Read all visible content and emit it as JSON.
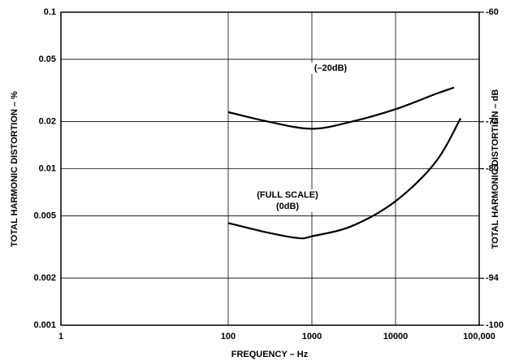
{
  "chart_data": {
    "type": "line",
    "xlabel": "FREQUENCY – Hz",
    "ylabel": "TOTAL HARMONIC DISTORTION – %",
    "y2label": "TOTAL HARMONIC DISTORTION – dB",
    "xscale": "log",
    "yscale": "log",
    "xlim": [
      1,
      100000
    ],
    "xticks": [
      1,
      100,
      1000,
      10000,
      {
        "value": 100000,
        "label": "100,000"
      }
    ],
    "ylim": [
      0.001,
      0.1
    ],
    "yticks": [
      0.001,
      0.002,
      0.005,
      0.01,
      0.02,
      0.05,
      0.1
    ],
    "y2lim": [
      -100,
      -60
    ],
    "y2ticks": [
      -100,
      -94,
      -80,
      -74,
      -60
    ],
    "grid": true,
    "series": [
      {
        "name": "(–20dB)",
        "color": "#000000",
        "x": [
          100,
          300,
          1000,
          3000,
          10000,
          30000,
          50000
        ],
        "values": [
          0.023,
          0.02,
          0.018,
          0.02,
          0.024,
          0.03,
          0.033
        ]
      },
      {
        "name": "(FULL SCALE) (0dB)",
        "color": "#000000",
        "x": [
          100,
          300,
          700,
          1000,
          3000,
          10000,
          30000,
          60000
        ],
        "values": [
          0.0045,
          0.0039,
          0.0036,
          0.0037,
          0.0043,
          0.0062,
          0.011,
          0.021
        ]
      }
    ],
    "annotations": [
      "(–20dB)",
      "(FULL SCALE)",
      "(0dB)"
    ]
  }
}
